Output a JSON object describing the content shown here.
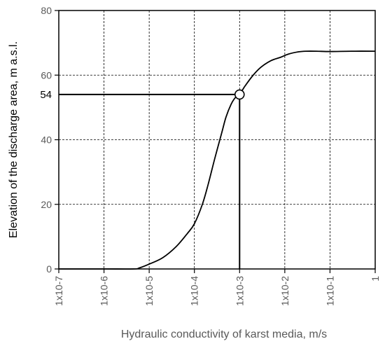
{
  "chart_data": {
    "type": "line",
    "xlabel": "Hydraulic conductivity of karst media, m/s",
    "ylabel": "Elevation of the discharge area, m a.s.l.",
    "x_scale": "log",
    "xlim": [
      1e-07,
      1
    ],
    "ylim": [
      0,
      80
    ],
    "grid": true,
    "x_ticks": [
      {
        "value": 1e-07,
        "label": "1x10-7"
      },
      {
        "value": 1e-06,
        "label": "1x10-6"
      },
      {
        "value": 1e-05,
        "label": "1x10-5"
      },
      {
        "value": 0.0001,
        "label": "1x10-4"
      },
      {
        "value": 0.001,
        "label": "1x10-3"
      },
      {
        "value": 0.01,
        "label": "1x10-2"
      },
      {
        "value": 0.1,
        "label": "1x10-1"
      },
      {
        "value": 1,
        "label": "1"
      }
    ],
    "y_ticks": [
      {
        "value": 0,
        "label": "0"
      },
      {
        "value": 20,
        "label": "20"
      },
      {
        "value": 40,
        "label": "40"
      },
      {
        "value": 60,
        "label": "60"
      },
      {
        "value": 80,
        "label": "80"
      }
    ],
    "series": [
      {
        "x": [
          1e-07,
          1e-06,
          4.5e-06,
          6e-06,
          1e-05,
          2e-05,
          4e-05,
          7e-05,
          0.0001,
          0.00015,
          0.0002,
          0.00028,
          0.0004,
          0.0005,
          0.00065,
          0.0008,
          0.001,
          0.0013,
          0.002,
          0.003,
          0.005,
          0.008,
          0.012,
          0.02,
          0.03,
          0.05,
          0.1,
          0.3,
          1
        ],
        "y": [
          0,
          0,
          0,
          0.3,
          1.5,
          3.5,
          7,
          11,
          14,
          20,
          26,
          34,
          42,
          47,
          51,
          53,
          54,
          56.5,
          60,
          62.5,
          64.5,
          65.5,
          66.5,
          67.2,
          67.4,
          67.4,
          67.3,
          67.4,
          67.4
        ]
      }
    ],
    "annotations": [
      {
        "type": "guide-lines",
        "x": 0.001,
        "y": 54,
        "label": "54",
        "marker": "open-circle"
      }
    ]
  }
}
